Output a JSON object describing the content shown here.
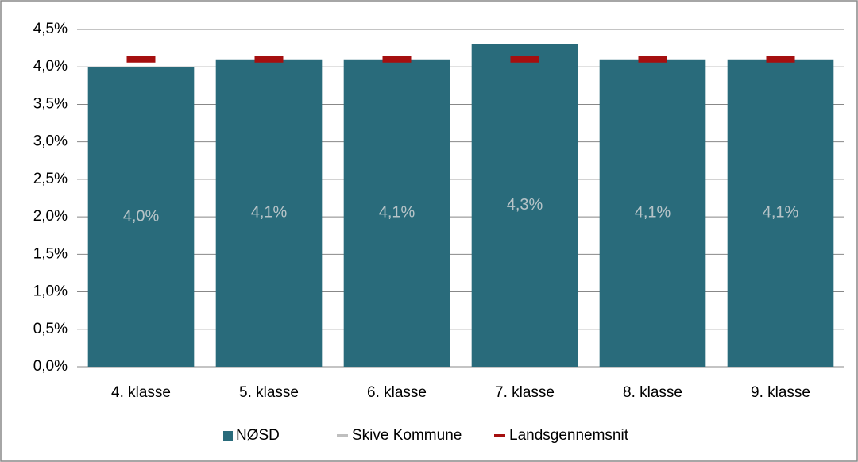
{
  "chart_data": {
    "type": "bar",
    "categories": [
      "4. klasse",
      "5. klasse",
      "6. klasse",
      "7. klasse",
      "8. klasse",
      "9. klasse"
    ],
    "series": [
      {
        "name": "NØSD",
        "color": "#296b7b",
        "values": [
          4.0,
          4.1,
          4.1,
          4.3,
          4.1,
          4.1
        ],
        "value_labels": [
          "4,0%",
          "4,1%",
          "4,1%",
          "4,3%",
          "4,1%",
          "4,1%"
        ]
      },
      {
        "name": "Skive Kommune",
        "color": "#bfbfbf",
        "values": [
          null,
          null,
          null,
          null,
          null,
          null
        ]
      },
      {
        "name": "Landsgennemsnit",
        "color": "#a50f0f",
        "values": [
          4.1,
          4.1,
          4.1,
          4.1,
          4.1,
          4.1
        ]
      }
    ],
    "ylim": [
      0,
      4.5
    ],
    "yticks": [
      {
        "value": 0,
        "label": "0,0%"
      },
      {
        "value": 0.5,
        "label": "0,5%"
      },
      {
        "value": 1.0,
        "label": "1,0%"
      },
      {
        "value": 1.5,
        "label": "1,5%"
      },
      {
        "value": 2.0,
        "label": "2,0%"
      },
      {
        "value": 2.5,
        "label": "2,5%"
      },
      {
        "value": 3.0,
        "label": "3,0%"
      },
      {
        "value": 3.5,
        "label": "3,5%"
      },
      {
        "value": 4.0,
        "label": "4,0%"
      },
      {
        "value": 4.5,
        "label": "4,5%"
      }
    ],
    "grid": true,
    "legend": "bottom"
  }
}
